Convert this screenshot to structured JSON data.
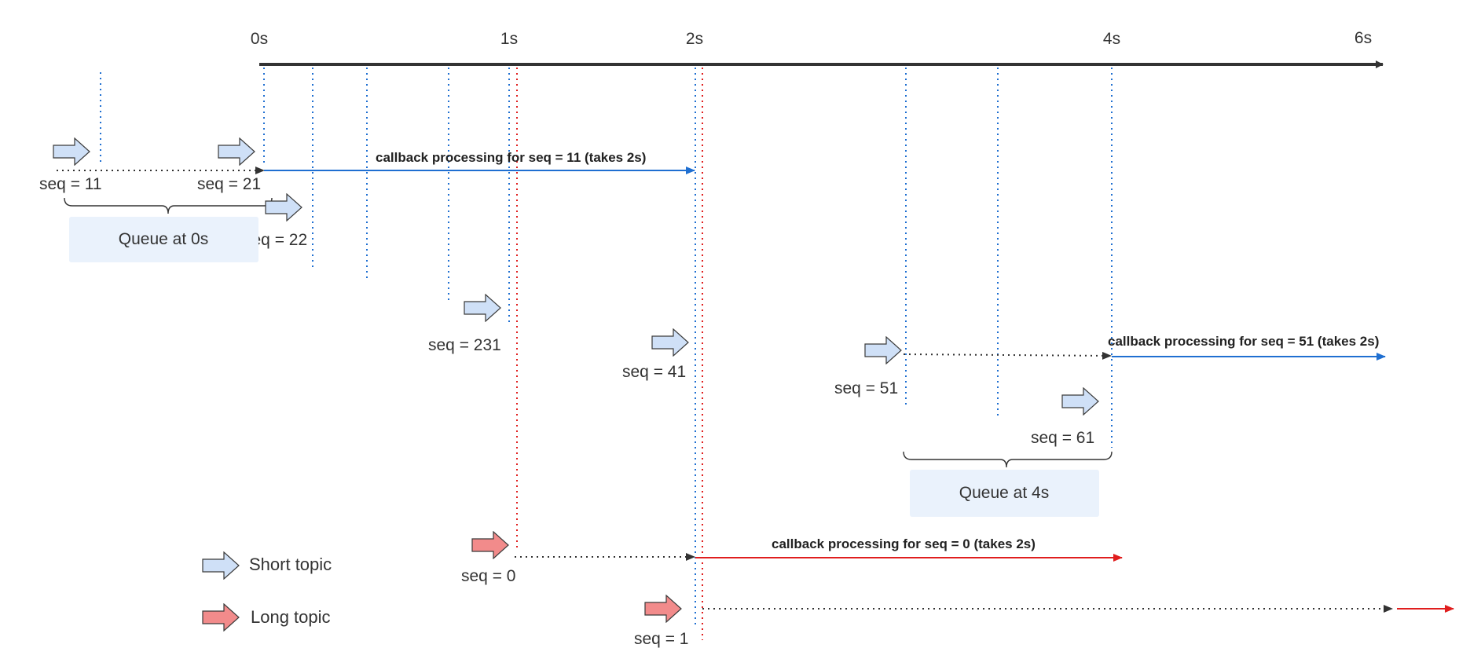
{
  "timeline": {
    "ticks": [
      "0s",
      "1s",
      "2s",
      "4s",
      "6s"
    ]
  },
  "messages": {
    "short": [
      "seq = 11",
      "seq = 21",
      "seq = 22",
      "seq = 231",
      "seq = 41",
      "seq = 51",
      "seq = 61"
    ],
    "long": [
      "seq = 0",
      "seq = 1"
    ]
  },
  "callbacks": [
    "callback processing for seq = 11 (takes 2s)",
    "callback processing for seq = 51 (takes 2s)",
    "callback processing for seq = 0 (takes 2s)"
  ],
  "queues": [
    "Queue at 0s",
    "Queue at 4s"
  ],
  "legend": {
    "short_topic": "Short topic",
    "long_topic": "Long topic"
  },
  "colors": {
    "short_topic_fill": "#cfe0f7",
    "long_topic_fill": "#f28b8b",
    "short_line": "#1f6fd1",
    "long_line": "#e01e1e",
    "axis": "#333333",
    "queue_box": "#eaf2fc"
  },
  "icons": {
    "short_topic": "block-arrow-right-icon",
    "long_topic": "block-arrow-right-icon"
  }
}
